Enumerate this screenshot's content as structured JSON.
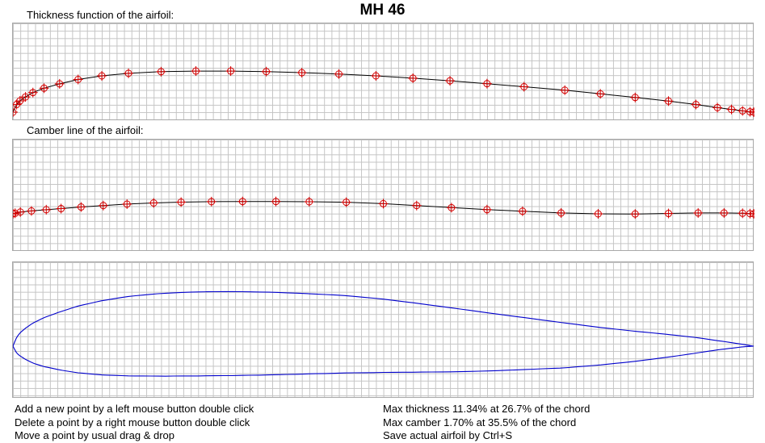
{
  "title": "MH 46",
  "panels": {
    "thickness_label": "Thickness function of the airfoil:",
    "camber_label": "Camber line of the airfoil:"
  },
  "instructions": [
    "Add a new point by a left mouse button double click",
    "Delete a point by a right mouse button double click",
    "Move a point by usual drag & drop"
  ],
  "stats": [
    "Max thickness 11.34% at 26.7% of the chord",
    "Max camber 1.70% at 35.5% of the chord",
    "Save actual airfoil by Ctrl+S"
  ],
  "colors": {
    "curve": "#000000",
    "control_point": "#d40000",
    "airfoil": "#0000cc",
    "grid": "#c4c4c4"
  },
  "thickness_points": [
    [
      0,
      0
    ],
    [
      0.005,
      0.021
    ],
    [
      0.0095,
      0.031
    ],
    [
      0.017,
      0.042
    ],
    [
      0.027,
      0.054
    ],
    [
      0.042,
      0.066
    ],
    [
      0.063,
      0.078
    ],
    [
      0.088,
      0.09
    ],
    [
      0.12,
      0.1
    ],
    [
      0.156,
      0.107
    ],
    [
      0.2,
      0.1115
    ],
    [
      0.247,
      0.1132
    ],
    [
      0.294,
      0.1132
    ],
    [
      0.342,
      0.1117
    ],
    [
      0.39,
      0.1088
    ],
    [
      0.44,
      0.105
    ],
    [
      0.49,
      0.1
    ],
    [
      0.54,
      0.0935
    ],
    [
      0.59,
      0.0865
    ],
    [
      0.64,
      0.0785
    ],
    [
      0.69,
      0.07
    ],
    [
      0.745,
      0.0605
    ],
    [
      0.793,
      0.0505
    ],
    [
      0.84,
      0.0405
    ],
    [
      0.885,
      0.0305
    ],
    [
      0.922,
      0.021
    ],
    [
      0.951,
      0.0125
    ],
    [
      0.97,
      0.0075
    ],
    [
      0.985,
      0.0035
    ],
    [
      0.995,
      0.001
    ],
    [
      1.0,
      0.0
    ]
  ],
  "camber_points": [
    [
      0,
      0
    ],
    [
      0.003,
      0.0008
    ],
    [
      0.01,
      0.0025
    ],
    [
      0.025,
      0.004
    ],
    [
      0.045,
      0.0057
    ],
    [
      0.065,
      0.0072
    ],
    [
      0.092,
      0.0094
    ],
    [
      0.122,
      0.0114
    ],
    [
      0.154,
      0.0134
    ],
    [
      0.19,
      0.015
    ],
    [
      0.227,
      0.0161
    ],
    [
      0.268,
      0.0168
    ],
    [
      0.31,
      0.017
    ],
    [
      0.355,
      0.017
    ],
    [
      0.4,
      0.0167
    ],
    [
      0.45,
      0.016
    ],
    [
      0.5,
      0.014
    ],
    [
      0.545,
      0.0114
    ],
    [
      0.592,
      0.0085
    ],
    [
      0.64,
      0.0058
    ],
    [
      0.688,
      0.0036
    ],
    [
      0.74,
      0.0012
    ],
    [
      0.79,
      0.0
    ],
    [
      0.84,
      -0.0002
    ],
    [
      0.885,
      0.0005
    ],
    [
      0.925,
      0.0012
    ],
    [
      0.96,
      0.0012
    ],
    [
      0.985,
      0.0008
    ],
    [
      0.995,
      0.0003
    ],
    [
      1.0,
      0.0
    ]
  ]
}
